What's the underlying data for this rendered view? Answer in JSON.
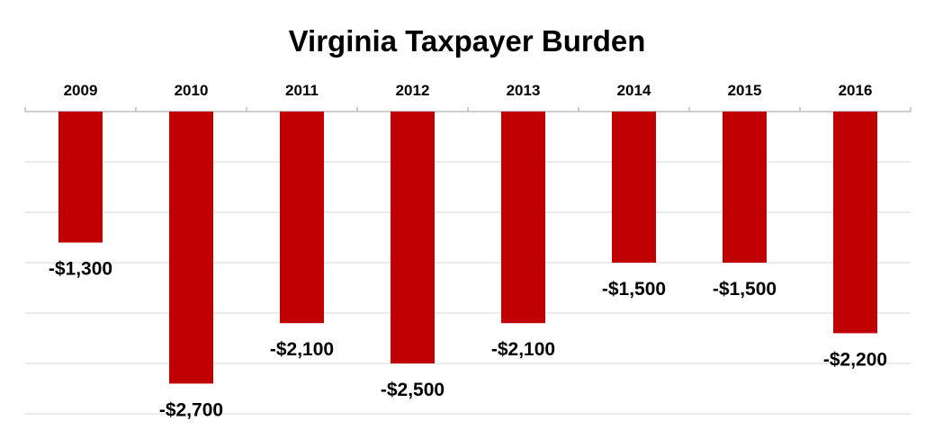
{
  "chart_data": {
    "type": "bar",
    "title": "Virginia Taxpayer Burden",
    "categories": [
      "2009",
      "2010",
      "2011",
      "2012",
      "2013",
      "2014",
      "2015",
      "2016"
    ],
    "values": [
      -1300,
      -2700,
      -2100,
      -2500,
      -2100,
      -1500,
      -1500,
      -2200
    ],
    "data_labels": [
      "-$1,300",
      "-$2,700",
      "-$2,100",
      "-$2,500",
      "-$2,100",
      "-$1,500",
      "-$1,500",
      "-$2,200"
    ],
    "xlabel": "",
    "ylabel": "",
    "ylim": [
      -3000,
      0
    ],
    "x_axis_position": "top",
    "grid": true,
    "legend": false,
    "colors": {
      "bar": "#c00000",
      "grid": "#d9d9d9",
      "axis": "#bfbfbf"
    }
  }
}
